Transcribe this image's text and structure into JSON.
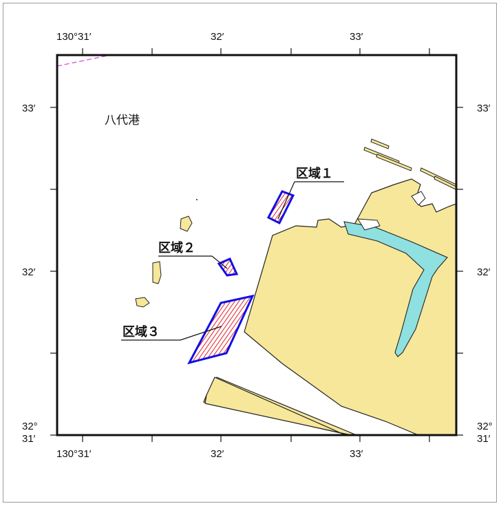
{
  "map": {
    "port_name": "八代港",
    "ticks": {
      "top": [
        "130°31′",
        "32′",
        "33′"
      ],
      "bottom": [
        "130°31′",
        "32′",
        "33′"
      ],
      "left": [
        "33′",
        "32′",
        "32°",
        "31′"
      ],
      "right": [
        "33′",
        "32′",
        "32°",
        "31′"
      ]
    },
    "zones": [
      {
        "label": "区域１"
      },
      {
        "label": "区域２"
      },
      {
        "label": "区域３"
      }
    ],
    "colors": {
      "land": "#f6e79a",
      "zone_outline": "#1010e8",
      "zone_hatch": "#e0202a",
      "canal": "#8fe0e0",
      "boundary_line": "#d24fd2"
    }
  }
}
